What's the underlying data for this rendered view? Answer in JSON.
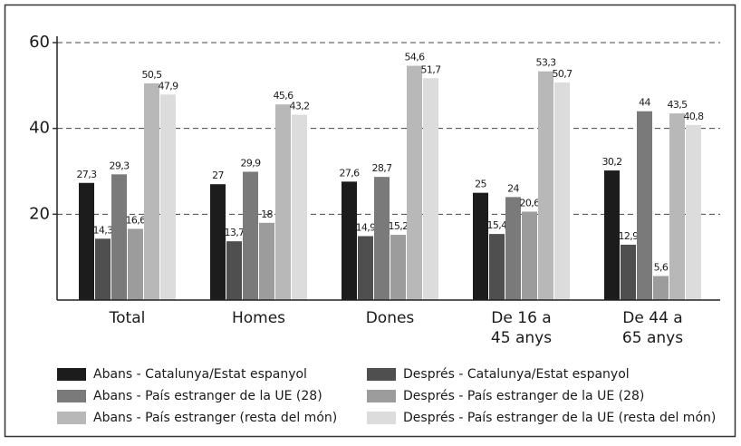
{
  "chart_data": {
    "type": "bar",
    "categories": [
      "Total",
      "Homes",
      "Dones",
      "De 16 a\n45 anys",
      "De 44 a\n65 anys"
    ],
    "series": [
      {
        "name": "Abans - Catalunya/Estat espanyol",
        "color": "#1c1c1c",
        "values": [
          27.3,
          27,
          27.6,
          25,
          30.2
        ],
        "value_labels": [
          "27,3",
          "27",
          "27,6",
          "25",
          "30,2"
        ]
      },
      {
        "name": "Després - Catalunya/Estat espanyol",
        "color": "#4f4f4f",
        "values": [
          14.3,
          13.7,
          14.9,
          15.4,
          12.9
        ],
        "value_labels": [
          "14,3",
          "13,7",
          "14,9",
          "15,4",
          "12,9"
        ]
      },
      {
        "name": "Abans - País estranger de la UE (28)",
        "color": "#7a7a7a",
        "values": [
          29.3,
          29.9,
          28.7,
          24,
          44
        ],
        "value_labels": [
          "29,3",
          "29,9",
          "28,7",
          "24",
          "44"
        ]
      },
      {
        "name": "Després - País estranger de la UE (28)",
        "color": "#9c9c9c",
        "values": [
          16.6,
          18,
          15.2,
          20.6,
          5.6
        ],
        "value_labels": [
          "16,6",
          "18",
          "15,2",
          "20,6",
          "5,6"
        ]
      },
      {
        "name": "Abans - País estranger (resta del món)",
        "color": "#b8b8b8",
        "values": [
          50.5,
          45.6,
          54.6,
          53.3,
          43.5
        ],
        "value_labels": [
          "50,5",
          "45,6",
          "54,6",
          "53,3",
          "43,5"
        ]
      },
      {
        "name": "Després - País estranger de la UE (resta del món)",
        "color": "#dcdcdc",
        "values": [
          47.9,
          43.2,
          51.7,
          50.7,
          40.8
        ],
        "value_labels": [
          "47,9",
          "43,2",
          "51,7",
          "50,7",
          "40,8"
        ]
      }
    ],
    "ylim": [
      0,
      60
    ],
    "yticks": [
      20,
      40,
      60
    ],
    "grid": true
  }
}
